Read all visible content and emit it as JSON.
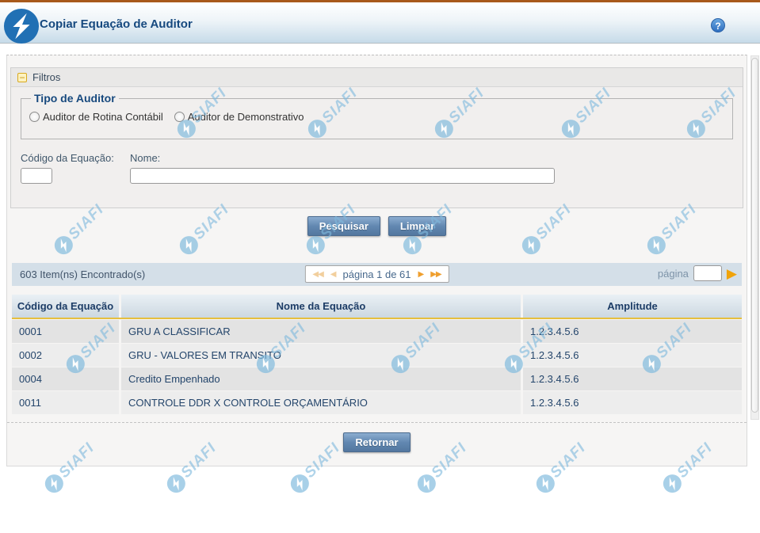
{
  "header": {
    "title": "Copiar Equação de Auditor",
    "help_label": "?"
  },
  "filters": {
    "box_title": "Filtros",
    "collapse_icon": "−",
    "tipo_legend": "Tipo de Auditor",
    "radio_rotina": "Auditor de Rotina Contábil",
    "radio_demonstrativo": "Auditor de Demonstrativo",
    "codigo_label": "Código da Equação:",
    "codigo_value": "",
    "nome_label": "Nome:",
    "nome_value": ""
  },
  "buttons": {
    "pesquisar": "Pesquisar",
    "limpar": "Limpar",
    "retornar": "Retornar"
  },
  "results": {
    "count": "603 Item(ns) Encontrado(s)",
    "pager": {
      "first": "◀◀",
      "prev": "◀",
      "status": "página 1 de 61",
      "next": "▶",
      "last": "▶▶",
      "goto_label": "página",
      "goto_value": "",
      "go": "▶"
    }
  },
  "table": {
    "columns": [
      "Código da Equação",
      "Nome da Equação",
      "Amplitude"
    ],
    "rows": [
      {
        "codigo": "0001",
        "nome": "GRU A CLASSIFICAR",
        "amplitude": "1.2.3.4.5.6"
      },
      {
        "codigo": "0002",
        "nome": "GRU - VALORES EM TRANSITO",
        "amplitude": "1.2.3.4.5.6"
      },
      {
        "codigo": "0004",
        "nome": "Credito Empenhado",
        "amplitude": "1.2.3.4.5.6"
      },
      {
        "codigo": "0011",
        "nome": "CONTROLE DDR X CONTROLE ORÇAMENTÁRIO",
        "amplitude": "1.2.3.4.5.6"
      }
    ]
  },
  "watermark": {
    "text": "SIAFI"
  },
  "colors": {
    "accent_blue": "#16497f",
    "header_gradient_bottom": "#c6dbe9",
    "top_line": "#a8591b",
    "gold_rule": "#e6bf3e",
    "button_blue": "#6288b1",
    "pager_arrow_active": "#ef9f2e",
    "watermark_blue": "#7fbadd"
  }
}
